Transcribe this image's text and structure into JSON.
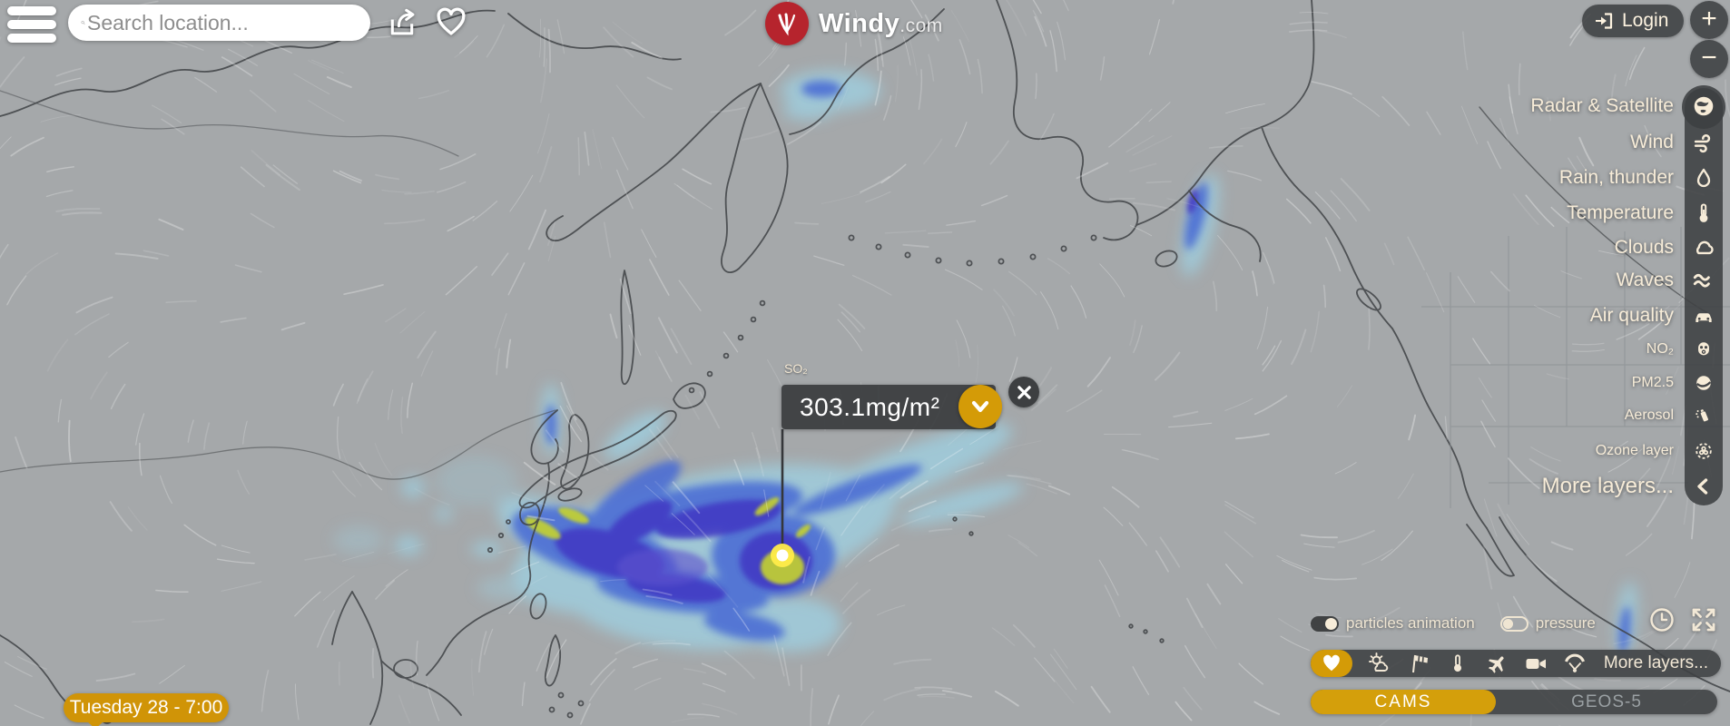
{
  "header": {
    "search": {
      "placeholder": "Search location..."
    },
    "brand": {
      "name": "Windy",
      "tld": ".com"
    },
    "login": {
      "label": "Login"
    },
    "zoom_in_label": "+",
    "zoom_out_label": "−"
  },
  "layer_menu": {
    "items": [
      {
        "label": "Radar & Satellite",
        "icon": "globe-icon",
        "style": "main"
      },
      {
        "label": "Wind",
        "icon": "wind-icon",
        "style": "main"
      },
      {
        "label": "Rain, thunder",
        "icon": "raindrop-icon",
        "style": "main"
      },
      {
        "label": "Temperature",
        "icon": "thermometer-icon",
        "style": "main"
      },
      {
        "label": "Clouds",
        "icon": "cloud-icon",
        "style": "main"
      },
      {
        "label": "Waves",
        "icon": "waves-icon",
        "style": "main"
      },
      {
        "label": "Air quality",
        "icon": "car-icon",
        "style": "main"
      },
      {
        "label": "NO₂",
        "icon": "gas-mask-icon",
        "style": "sub"
      },
      {
        "label": "PM2.5",
        "icon": "face-mask-icon",
        "style": "sub"
      },
      {
        "label": "Aerosol",
        "icon": "spray-icon",
        "style": "sub"
      },
      {
        "label": "Ozone layer",
        "icon": "ozone-icon",
        "style": "sub"
      },
      {
        "label": "More layers...",
        "icon": "chevron-left-icon",
        "style": "more"
      }
    ]
  },
  "picker": {
    "layer_label": "SO₂",
    "value": "303.1mg/m²"
  },
  "timeline": {
    "time_label": "Tuesday 28 - 7:00"
  },
  "bottom_right": {
    "particles_label": "particles animation",
    "pressure_label": "pressure",
    "more_layers_label": "More layers...",
    "models": [
      {
        "label": "CAMS",
        "active": true
      },
      {
        "label": "GEOS-5",
        "active": false
      }
    ]
  },
  "colors": {
    "accent_orange": "#d49b07",
    "brand_red": "#b6242d",
    "panel_dark": "rgba(62,64,66,0.88)",
    "cream_text": "#f7ecd8",
    "map_base": "#a5a8aa",
    "so2_light": "#9fcfe0",
    "so2_mid": "#4a6cd4",
    "so2_dark": "#4136c2",
    "so2_peak": "#c6d32f"
  }
}
